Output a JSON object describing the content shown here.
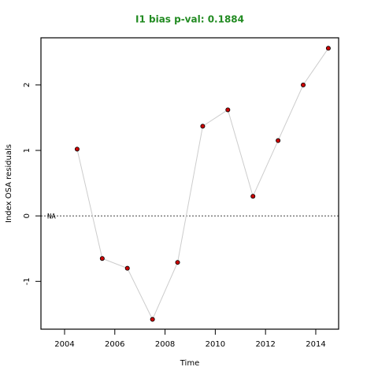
{
  "chart_data": {
    "type": "scatter-line",
    "title": "I1 bias p-val: 0.1884",
    "x_label": "Time",
    "y_label": "Index OSA residuals",
    "x": [
      2004.5,
      2005.5,
      2006.5,
      2007.5,
      2008.5,
      2009.5,
      2010.5,
      2011.5,
      2012.5,
      2013.5,
      2014.5
    ],
    "series": [
      {
        "color": "#cc0000",
        "values": [
          1.02,
          -0.65,
          -0.8,
          -1.58,
          -0.71,
          1.37,
          1.62,
          0.3,
          1.15,
          2.0,
          2.56
        ]
      }
    ],
    "hline": 0,
    "annotation": "NA",
    "xlim": [
      2003.06,
      2014.91
    ],
    "ylim": [
      -1.73,
      2.72
    ],
    "xticks": [
      2004,
      2006,
      2008,
      2010,
      2012,
      2014
    ],
    "yticks": [
      -1,
      0,
      1,
      2
    ]
  }
}
